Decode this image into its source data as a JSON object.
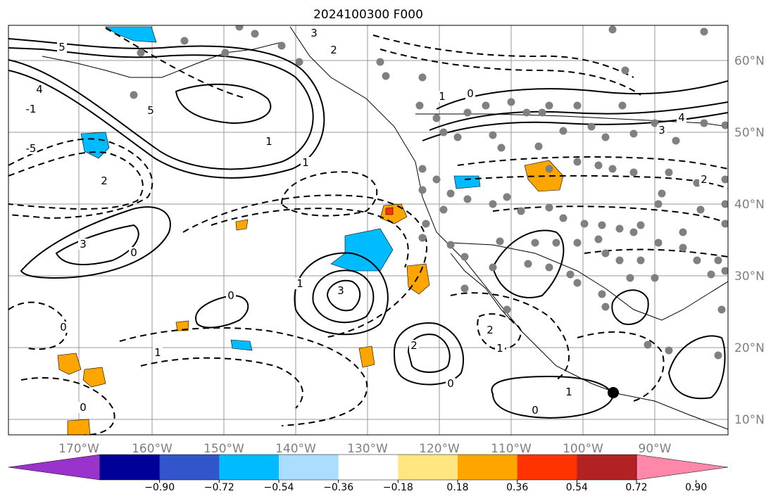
{
  "chart_data": {
    "type": "map-contour",
    "title": "2024100300 F000",
    "longitude_ticks": [
      "170°W",
      "160°W",
      "150°W",
      "140°W",
      "130°W",
      "120°W",
      "110°W",
      "100°W",
      "90°W"
    ],
    "latitude_ticks": [
      "60°N",
      "50°N",
      "40°N",
      "30°N",
      "20°N",
      "10°N"
    ],
    "colorbar": {
      "ticks": [
        "−0.90",
        "−0.72",
        "−0.54",
        "−0.36",
        "−0.18",
        "0.18",
        "0.36",
        "0.54",
        "0.72",
        "0.90"
      ],
      "colors": [
        "#9933cc",
        "#000099",
        "#3355cc",
        "#00bbff",
        "#aaddff",
        "#ffffff",
        "#ffe680",
        "#ffa500",
        "#ff3300",
        "#b22222",
        "#ff88aa"
      ],
      "extend": "both"
    },
    "contour_labels": [
      {
        "text": "5",
        "style": "dashed"
      },
      {
        "text": "-5",
        "style": "dashed"
      },
      {
        "text": "4",
        "style": "dashed"
      },
      {
        "text": "3",
        "style": "solid"
      },
      {
        "text": "2",
        "style": "dashed"
      },
      {
        "text": "1",
        "style": "dashed"
      },
      {
        "text": "0",
        "style": "solid"
      },
      {
        "text": "5",
        "style": "solid"
      },
      {
        "text": "-1",
        "style": "dashed"
      },
      {
        "text": "3",
        "style": "solid"
      },
      {
        "text": "2",
        "style": "solid"
      },
      {
        "text": "1",
        "style": "solid"
      },
      {
        "text": "0",
        "style": "solid"
      },
      {
        "text": "3",
        "style": "solid"
      },
      {
        "text": "2",
        "style": "solid"
      },
      {
        "text": "0",
        "style": "solid"
      },
      {
        "text": "2",
        "style": "dashed"
      },
      {
        "text": "1",
        "style": "dashed"
      },
      {
        "text": "1",
        "style": "solid"
      },
      {
        "text": "0",
        "style": "solid"
      },
      {
        "text": "0",
        "style": "solid"
      },
      {
        "text": "4",
        "style": "solid"
      },
      {
        "text": "3",
        "style": "solid"
      },
      {
        "text": "2",
        "style": "dashed"
      },
      {
        "text": "1",
        "style": "dashed"
      },
      {
        "text": "1",
        "style": "solid"
      },
      {
        "text": "0",
        "style": "solid"
      },
      {
        "text": "0",
        "style": "solid"
      },
      {
        "text": "1",
        "style": "dashed"
      }
    ]
  }
}
